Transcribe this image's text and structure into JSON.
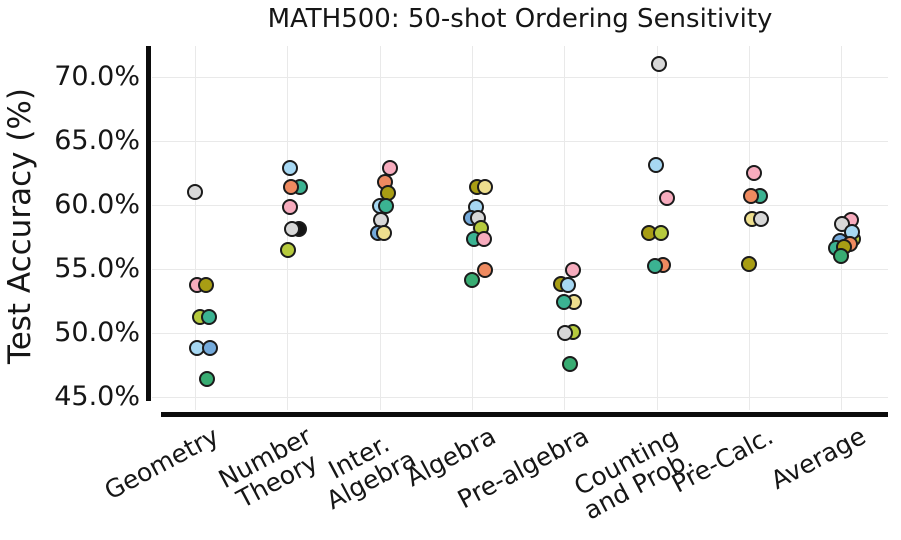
{
  "chart_data": {
    "type": "scatter",
    "title": "MATH500: 50-shot Ordering Sensitivity",
    "ylabel": "Test Accuracy (%)",
    "ylim": [
      44.5,
      71.5
    ],
    "grid": true,
    "legend": "none",
    "yticks": [
      {
        "label": "70.0%",
        "value": 70
      },
      {
        "label": "65.0%",
        "value": 65
      },
      {
        "label": "60.0%",
        "value": 60
      },
      {
        "label": "55.0%",
        "value": 55
      },
      {
        "label": "50.0%",
        "value": 50
      },
      {
        "label": "45.0%",
        "value": 45
      }
    ],
    "categories": [
      "Geometry",
      "Number\nTheory",
      "Inter.\nAlgebra",
      "Algebra",
      "Pre-algebra",
      "Counting\nand Prob.",
      "Pre-Calc.",
      "Average"
    ],
    "series_colors": {
      "lightblue": "#A7D8F3",
      "steelblue": "#74AADB",
      "orange": "#EE8A60",
      "pink": "#F7ACBE",
      "teal": "#3BB392",
      "green": "#38AC72",
      "gray": "#D8D8D8",
      "olive": "#A89D14",
      "yellowgreen": "#B6CA3D",
      "khaki": "#EEDF8E",
      "black": "#141414"
    },
    "points": [
      {
        "c": 0,
        "s": "gray",
        "v": 61.0,
        "dx": 0
      },
      {
        "c": 0,
        "s": "pink",
        "v": 53.7,
        "dx": 2.5
      },
      {
        "c": 0,
        "s": "olive",
        "v": 53.7,
        "dx": 11
      },
      {
        "c": 0,
        "s": "yellowgreen",
        "v": 51.2,
        "dx": 5.5
      },
      {
        "c": 0,
        "s": "teal",
        "v": 51.2,
        "dx": 14.5
      },
      {
        "c": 0,
        "s": "lightblue",
        "v": 48.8,
        "dx": 2.5
      },
      {
        "c": 0,
        "s": "steelblue",
        "v": 48.8,
        "dx": 15.5
      },
      {
        "c": 0,
        "s": "green",
        "v": 46.4,
        "dx": 12
      },
      {
        "c": 1,
        "s": "lightblue",
        "v": 62.9,
        "dx": 3.4
      },
      {
        "c": 1,
        "s": "teal",
        "v": 61.4,
        "dx": 13
      },
      {
        "c": 1,
        "s": "orange",
        "v": 61.4,
        "dx": 3.7
      },
      {
        "c": 1,
        "s": "pink",
        "v": 59.8,
        "dx": 3
      },
      {
        "c": 1,
        "s": "black",
        "v": 58.1,
        "dx": 11.7
      },
      {
        "c": 1,
        "s": "gray",
        "v": 58.1,
        "dx": 5
      },
      {
        "c": 1,
        "s": "yellowgreen",
        "v": 56.5,
        "dx": 0.7
      },
      {
        "c": 2,
        "s": "pink",
        "v": 62.9,
        "dx": 11.3
      },
      {
        "c": 2,
        "s": "orange",
        "v": 61.8,
        "dx": 6
      },
      {
        "c": 2,
        "s": "olive",
        "v": 60.9,
        "dx": 8.6
      },
      {
        "c": 2,
        "s": "lightblue",
        "v": 59.9,
        "dx": 1.3
      },
      {
        "c": 2,
        "s": "teal",
        "v": 59.9,
        "dx": 7
      },
      {
        "c": 2,
        "s": "gray",
        "v": 58.8,
        "dx": 2
      },
      {
        "c": 2,
        "s": "steelblue",
        "v": 57.8,
        "dx": -1.4
      },
      {
        "c": 2,
        "s": "khaki",
        "v": 57.8,
        "dx": 5.3
      },
      {
        "c": 3,
        "s": "olive",
        "v": 61.4,
        "dx": 5.7
      },
      {
        "c": 3,
        "s": "khaki",
        "v": 61.4,
        "dx": 13.7
      },
      {
        "c": 3,
        "s": "lightblue",
        "v": 59.8,
        "dx": 5
      },
      {
        "c": 3,
        "s": "steelblue",
        "v": 59.0,
        "dx": -0.3
      },
      {
        "c": 3,
        "s": "gray",
        "v": 59.0,
        "dx": 6.7
      },
      {
        "c": 3,
        "s": "yellowgreen",
        "v": 58.2,
        "dx": 9.7
      },
      {
        "c": 3,
        "s": "teal",
        "v": 57.3,
        "dx": 2.3
      },
      {
        "c": 3,
        "s": "pink",
        "v": 57.3,
        "dx": 12.3
      },
      {
        "c": 3,
        "s": "orange",
        "v": 54.9,
        "dx": 13.3
      },
      {
        "c": 3,
        "s": "green",
        "v": 54.1,
        "dx": 0.7
      },
      {
        "c": 4,
        "s": "pink",
        "v": 54.9,
        "dx": 8.7
      },
      {
        "c": 4,
        "s": "olive",
        "v": 53.8,
        "dx": -2.6
      },
      {
        "c": 4,
        "s": "lightblue",
        "v": 53.7,
        "dx": 3.7
      },
      {
        "c": 4,
        "s": "khaki",
        "v": 52.4,
        "dx": 10
      },
      {
        "c": 4,
        "s": "teal",
        "v": 52.4,
        "dx": -0.3
      },
      {
        "c": 4,
        "s": "yellowgreen",
        "v": 50.1,
        "dx": 9
      },
      {
        "c": 4,
        "s": "gray",
        "v": 50.0,
        "dx": 1.4
      },
      {
        "c": 4,
        "s": "green",
        "v": 47.6,
        "dx": 6.4
      },
      {
        "c": 5,
        "s": "gray",
        "v": 71.0,
        "dx": 3.3
      },
      {
        "c": 5,
        "s": "lightblue",
        "v": 63.1,
        "dx": 0
      },
      {
        "c": 5,
        "s": "pink",
        "v": 60.5,
        "dx": 11
      },
      {
        "c": 5,
        "s": "olive",
        "v": 57.8,
        "dx": -6.7
      },
      {
        "c": 5,
        "s": "yellowgreen",
        "v": 57.8,
        "dx": 5
      },
      {
        "c": 5,
        "s": "orange",
        "v": 55.3,
        "dx": 7
      },
      {
        "c": 5,
        "s": "teal",
        "v": 55.2,
        "dx": -0.7
      },
      {
        "c": 6,
        "s": "pink",
        "v": 62.5,
        "dx": 6
      },
      {
        "c": 6,
        "s": "teal",
        "v": 60.7,
        "dx": 12
      },
      {
        "c": 6,
        "s": "orange",
        "v": 60.7,
        "dx": 2.7
      },
      {
        "c": 6,
        "s": "khaki",
        "v": 58.9,
        "dx": 3.7
      },
      {
        "c": 6,
        "s": "gray",
        "v": 58.9,
        "dx": 12.7
      },
      {
        "c": 6,
        "s": "olive",
        "v": 55.4,
        "dx": 0.3
      },
      {
        "c": 7,
        "s": "pink",
        "v": 58.8,
        "dx": 9.7
      },
      {
        "c": 7,
        "s": "gray",
        "v": 58.5,
        "dx": 0.7
      },
      {
        "c": 7,
        "s": "yellowgreen",
        "v": 57.3,
        "dx": 12
      },
      {
        "c": 7,
        "s": "lightblue",
        "v": 57.9,
        "dx": 10.7
      },
      {
        "c": 7,
        "s": "steelblue",
        "v": 57.2,
        "dx": -1.3
      },
      {
        "c": 7,
        "s": "orange",
        "v": 56.9,
        "dx": 8.7
      },
      {
        "c": 7,
        "s": "teal",
        "v": 56.6,
        "dx": -5.3
      },
      {
        "c": 7,
        "s": "olive",
        "v": 56.7,
        "dx": 3
      },
      {
        "c": 7,
        "s": "green",
        "v": 56.0,
        "dx": -0.3
      }
    ]
  }
}
